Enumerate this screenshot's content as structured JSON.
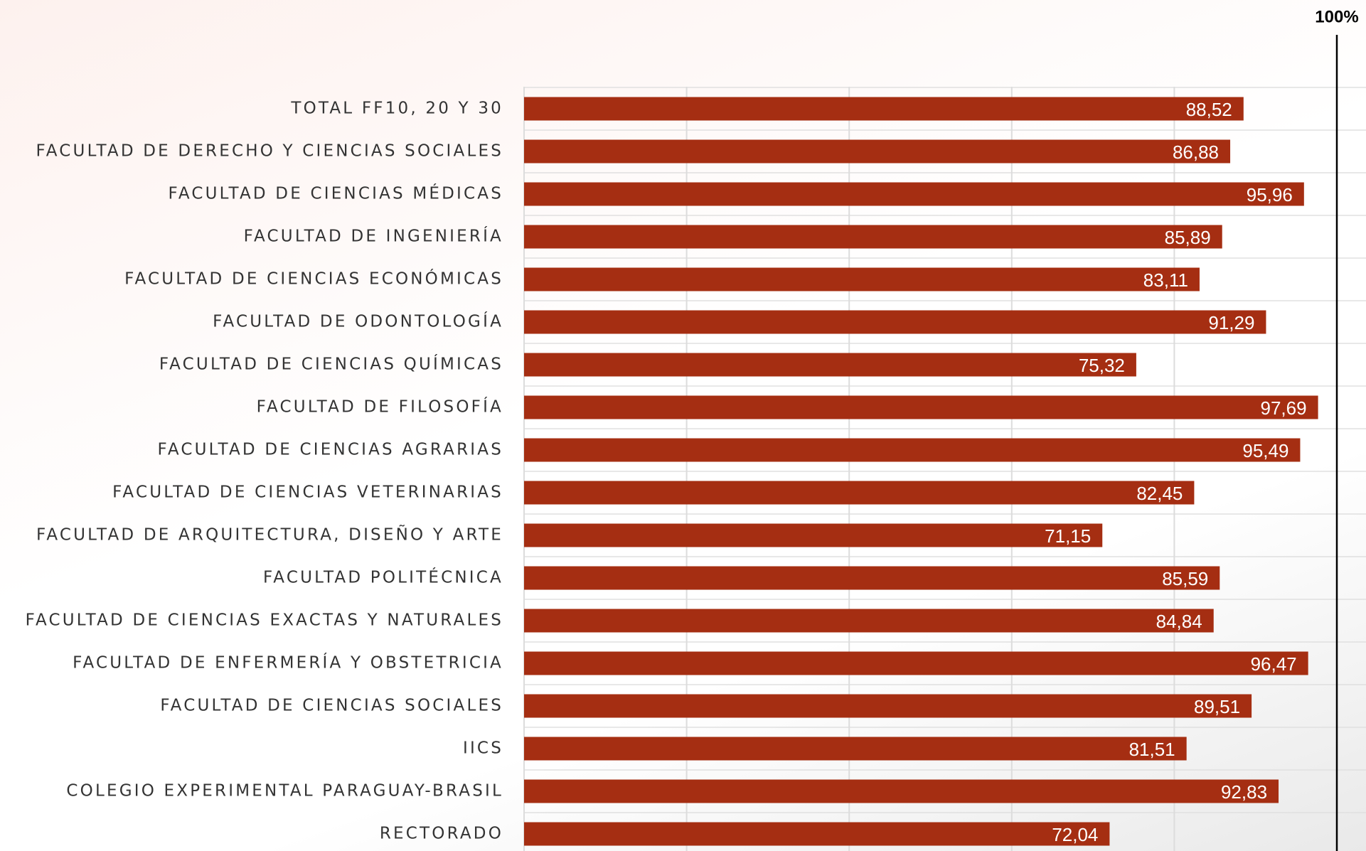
{
  "chart_data": {
    "type": "hbar",
    "categories": [
      "TOTAL FF10, 20 Y 30",
      "FACULTAD DE DERECHO Y CIENCIAS SOCIALES",
      "FACULTAD DE CIENCIAS MÉDICAS",
      "FACULTAD DE INGENIERÍA",
      "FACULTAD DE CIENCIAS ECONÓMICAS",
      "FACULTAD DE ODONTOLOGÍA",
      "FACULTAD DE CIENCIAS QUÍMICAS",
      "FACULTAD DE FILOSOFÍA",
      "FACULTAD DE CIENCIAS AGRARIAS",
      "FACULTAD DE CIENCIAS VETERINARIAS",
      "FACULTAD DE ARQUITECTURA, DISEÑO Y ARTE",
      "FACULTAD POLITÉCNICA",
      "FACULTAD DE CIENCIAS EXACTAS Y NATURALES",
      "FACULTAD DE ENFERMERÍA Y OBSTETRICIA",
      "FACULTAD DE CIENCIAS SOCIALES",
      "IICS",
      "COLEGIO EXPERIMENTAL PARAGUAY-BRASIL",
      "RECTORADO"
    ],
    "values": [
      88.52,
      86.88,
      95.96,
      85.89,
      83.11,
      91.29,
      75.32,
      97.69,
      95.49,
      82.45,
      71.15,
      85.59,
      84.84,
      96.47,
      89.51,
      81.51,
      92.83,
      72.04
    ],
    "value_labels": [
      "88,52",
      "86,88",
      "95,96",
      "85,89",
      "83,11",
      "91,29",
      "75,32",
      "97,69",
      "95,49",
      "82,45",
      "71,15",
      "85,59",
      "84,84",
      "96,47",
      "89,51",
      "81,51",
      "92,83",
      "72,04"
    ],
    "color": "#a52e12",
    "xlim": [
      0,
      100
    ],
    "xgrid": [
      0,
      20,
      40,
      60,
      80
    ],
    "reference_line": {
      "value": 100,
      "label": "100%"
    }
  }
}
